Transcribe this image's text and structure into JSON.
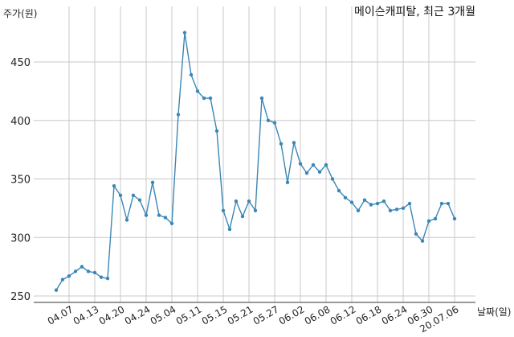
{
  "chart_data": {
    "type": "line",
    "title": "메이슨캐피탈, 최근 3개월",
    "ylabel": "주가(원)",
    "xlabel": "날짜(일)",
    "ylim": [
      245,
      480
    ],
    "yticks": [
      250,
      300,
      350,
      400,
      450
    ],
    "grid": true,
    "color": "#3a87b7",
    "xtick_labels": [
      "04.07",
      "04.13",
      "04.20",
      "04.24",
      "05.04",
      "05.11",
      "05.15",
      "05.21",
      "05.27",
      "06.02",
      "06.08",
      "06.12",
      "06.18",
      "06.24",
      "06.30",
      "20.07.06"
    ],
    "xtick_positions": [
      2,
      6,
      10,
      14,
      18,
      22,
      26,
      30,
      34,
      38,
      42,
      46,
      50,
      54,
      58,
      62
    ],
    "series": [
      {
        "values": [
          255,
          264,
          267,
          271,
          275,
          271,
          270,
          266,
          265,
          344,
          336,
          315,
          336,
          332,
          319,
          347,
          319,
          317,
          312,
          405,
          475,
          439,
          425,
          419,
          419,
          391,
          323,
          307,
          331,
          318,
          331,
          323,
          419,
          400,
          398,
          380,
          347,
          381,
          363,
          355,
          362,
          356,
          362,
          350,
          340,
          334,
          330,
          323,
          332,
          328,
          329,
          331,
          323,
          324,
          325,
          329,
          303,
          297,
          314,
          316,
          329,
          329,
          316
        ]
      }
    ]
  }
}
